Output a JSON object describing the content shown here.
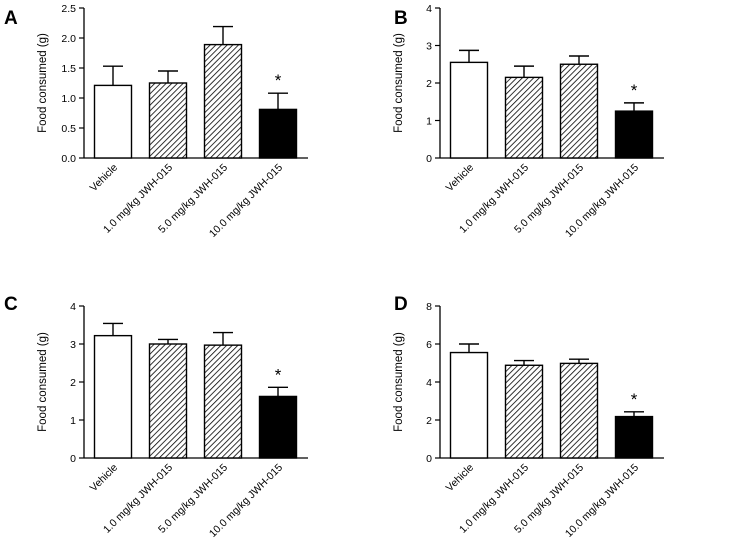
{
  "chart_data": [
    {
      "type": "bar",
      "panel": "A",
      "ylabel": "Food consumed (g)",
      "ylim": [
        0,
        2.5
      ],
      "yticks": [
        "0.0",
        "0.5",
        "1.0",
        "1.5",
        "2.0",
        "2.5"
      ],
      "categories": [
        "Vehicle",
        "1.0 mg/kg JWH-015",
        "5.0 mg/kg JWH-015",
        "10.0 mg/kg JWH-015"
      ],
      "values": [
        1.21,
        1.25,
        1.89,
        0.81
      ],
      "errors": [
        0.32,
        0.2,
        0.3,
        0.27
      ],
      "fills": [
        "white",
        "hatch",
        "hatch",
        "black"
      ],
      "annotations": [
        "",
        "",
        "",
        "*"
      ],
      "grid": false
    },
    {
      "type": "bar",
      "panel": "B",
      "ylabel": "Food consumed (g)",
      "ylim": [
        0,
        4
      ],
      "yticks": [
        "0",
        "1",
        "2",
        "3",
        "4"
      ],
      "categories": [
        "Vehicle",
        "1.0 mg/kg JWH-015",
        "5.0 mg/kg JWH-015",
        "10.0 mg/kg JWH-015"
      ],
      "values": [
        2.55,
        2.15,
        2.5,
        1.25
      ],
      "errors": [
        0.32,
        0.3,
        0.22,
        0.22
      ],
      "fills": [
        "white",
        "hatch",
        "hatch",
        "black"
      ],
      "annotations": [
        "",
        "",
        "",
        "*"
      ],
      "grid": false
    },
    {
      "type": "bar",
      "panel": "C",
      "ylabel": "Food consumed (g)",
      "ylim": [
        0,
        4
      ],
      "yticks": [
        "0",
        "1",
        "2",
        "3",
        "4"
      ],
      "categories": [
        "Vehicle",
        "1.0 mg/kg JWH-015",
        "5.0 mg/kg JWH-015",
        "10.0 mg/kg JWH-015"
      ],
      "values": [
        3.22,
        3.0,
        2.97,
        1.62
      ],
      "errors": [
        0.32,
        0.12,
        0.33,
        0.24
      ],
      "fills": [
        "white",
        "hatch",
        "hatch",
        "black"
      ],
      "annotations": [
        "",
        "",
        "",
        "*"
      ],
      "grid": false
    },
    {
      "type": "bar",
      "panel": "D",
      "ylabel": "Food consumed (g)",
      "ylim": [
        0,
        8
      ],
      "yticks": [
        "0",
        "2",
        "4",
        "6",
        "8"
      ],
      "categories": [
        "Vehicle",
        "1.0 mg/kg JWH-015",
        "5.0 mg/kg JWH-015",
        "10.0 mg/kg JWH-015"
      ],
      "values": [
        5.55,
        4.88,
        4.98,
        2.18
      ],
      "errors": [
        0.45,
        0.25,
        0.22,
        0.25
      ],
      "fills": [
        "white",
        "hatch",
        "hatch",
        "black"
      ],
      "annotations": [
        "",
        "",
        "",
        "*"
      ],
      "grid": false
    }
  ]
}
